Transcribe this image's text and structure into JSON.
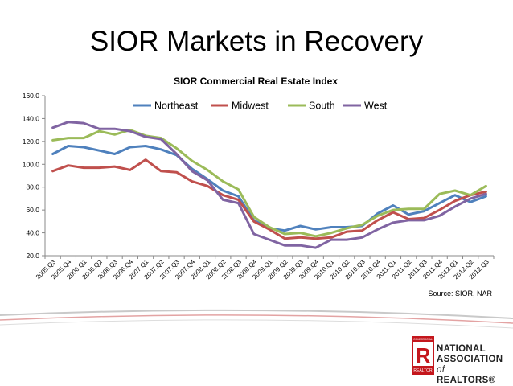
{
  "slide": {
    "title": "SIOR Markets in Recovery",
    "source": "Source: SIOR, NAR"
  },
  "brand": {
    "line1": "NATIONAL",
    "line2": "ASSOCIATION",
    "of": "of",
    "line3": "REALTORS®",
    "logo_letter": "R",
    "logo_top": "COMMERCIAL",
    "logo_bottom": "REALTOR",
    "color": "#c4161c"
  },
  "chart_data": {
    "type": "line",
    "title": "SIOR Commercial Real Estate Index",
    "xlabel": "",
    "ylabel": "",
    "ylim": [
      20,
      160
    ],
    "yticks": [
      "20.0",
      "40.0",
      "60.0",
      "80.0",
      "100.0",
      "120.0",
      "140.0",
      "160.0"
    ],
    "grid": false,
    "legend": "top",
    "categories": [
      "2005.Q3",
      "2005.Q4",
      "2006.Q1",
      "2006.Q2",
      "2006.Q3",
      "2006.Q4",
      "2007.Q1",
      "2007.Q2",
      "2007.Q3",
      "2007.Q4",
      "2008.Q1",
      "2008.Q2",
      "2008.Q3",
      "2008.Q4",
      "2009.Q1",
      "2009.Q2",
      "2009.Q3",
      "2009.Q4",
      "2010.Q1",
      "2010.Q2",
      "2010.Q3",
      "2010.Q4",
      "2011.Q1",
      "2011.Q2",
      "2011.Q3",
      "2011.Q4",
      "2012.Q1",
      "2012.Q2",
      "2012.Q3"
    ],
    "series": [
      {
        "name": "Northeast",
        "color": "#4f81bd",
        "values": [
          109,
          116,
          115,
          112,
          109,
          115,
          116,
          113,
          108,
          96,
          87,
          77,
          72,
          51,
          44,
          42,
          46,
          43,
          45,
          45,
          46,
          57,
          64,
          56,
          59,
          66,
          73,
          67,
          72
        ]
      },
      {
        "name": "Midwest",
        "color": "#c0504d",
        "values": [
          94,
          99,
          97,
          97,
          98,
          95,
          104,
          94,
          93,
          85,
          81,
          73,
          69,
          50,
          43,
          35,
          36,
          35,
          36,
          41,
          42,
          51,
          58,
          52,
          53,
          60,
          68,
          73,
          76
        ]
      },
      {
        "name": "South",
        "color": "#9bbb59",
        "values": [
          121,
          123,
          123,
          129,
          126,
          130,
          125,
          123,
          114,
          103,
          95,
          85,
          78,
          54,
          45,
          39,
          40,
          37,
          40,
          44,
          47,
          55,
          60,
          61,
          61,
          74,
          77,
          73,
          81
        ]
      },
      {
        "name": "West",
        "color": "#8064a2",
        "values": [
          132,
          137,
          136,
          131,
          131,
          129,
          124,
          122,
          109,
          94,
          86,
          69,
          66,
          39,
          34,
          29,
          29,
          27,
          34,
          34,
          36,
          43,
          49,
          51,
          51,
          55,
          63,
          70,
          74
        ]
      }
    ]
  }
}
